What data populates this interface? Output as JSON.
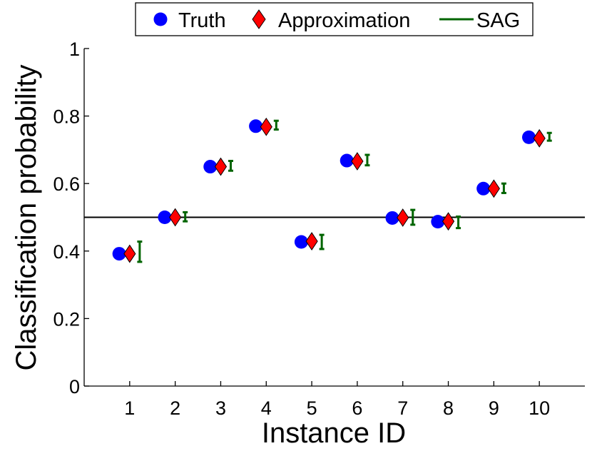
{
  "chart_data": {
    "type": "scatter",
    "title": "",
    "xlabel": "Instance ID",
    "ylabel": "Classification probability",
    "xlim": [
      0,
      11
    ],
    "ylim": [
      0,
      1
    ],
    "x_ticks": [
      "1",
      "2",
      "3",
      "4",
      "5",
      "6",
      "7",
      "8",
      "9",
      "10"
    ],
    "y_ticks": [
      "0",
      "0.2",
      "0.4",
      "0.6",
      "0.8",
      "1"
    ],
    "y_tick_values": [
      0,
      0.2,
      0.4,
      0.6,
      0.8,
      1
    ],
    "reference_line": 0.5,
    "instances": [
      1,
      2,
      3,
      4,
      5,
      6,
      7,
      8,
      9,
      10
    ],
    "series": [
      {
        "name": "Truth",
        "marker": "circle",
        "color": "#0000ff",
        "values": [
          0.392,
          0.5,
          0.65,
          0.77,
          0.427,
          0.668,
          0.498,
          0.487,
          0.585,
          0.737
        ]
      },
      {
        "name": "Approximation",
        "marker": "diamond",
        "color": "#ff0000",
        "values": [
          0.392,
          0.5,
          0.65,
          0.768,
          0.429,
          0.666,
          0.499,
          0.488,
          0.585,
          0.734
        ]
      },
      {
        "name": "SAG",
        "marker": "errorbar",
        "color": "#006400",
        "low": [
          0.368,
          0.488,
          0.638,
          0.76,
          0.406,
          0.654,
          0.478,
          0.468,
          0.572,
          0.727
        ],
        "high": [
          0.428,
          0.515,
          0.667,
          0.786,
          0.448,
          0.685,
          0.522,
          0.502,
          0.6,
          0.75
        ]
      }
    ],
    "legend": {
      "placement": "top-center",
      "entries": [
        "Truth",
        "Approximation",
        "SAG"
      ]
    },
    "grid": false
  }
}
